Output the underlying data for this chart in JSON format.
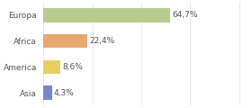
{
  "categories": [
    "Europa",
    "Africa",
    "America",
    "Asia"
  ],
  "values": [
    64.7,
    22.4,
    8.6,
    4.3
  ],
  "labels": [
    "64,7%",
    "22,4%",
    "8,6%",
    "4,3%"
  ],
  "colors": [
    "#b5cc8e",
    "#e8a870",
    "#e8d060",
    "#7888c8"
  ],
  "xlim": [
    0,
    105
  ],
  "background_color": "#ffffff",
  "label_fontsize": 6.5,
  "tick_fontsize": 6.5,
  "bar_height": 0.55
}
